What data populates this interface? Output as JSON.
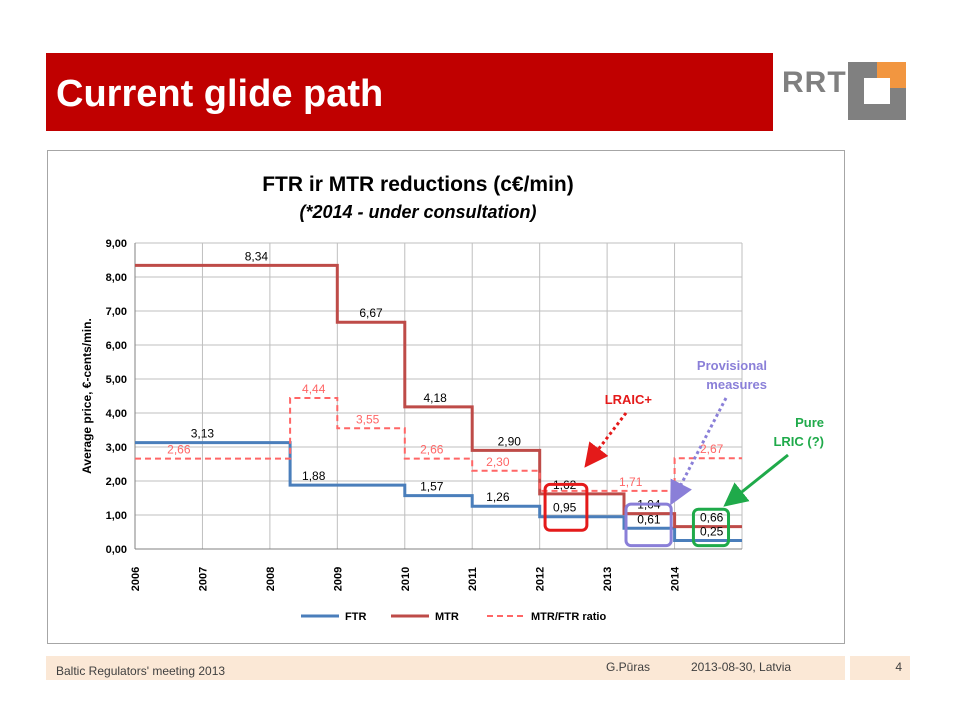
{
  "slide": {
    "title": "Current glide path",
    "logo_text": "RRT",
    "footer_left": "Baltic Regulators' meeting 2013",
    "footer_author": "G.Pūras",
    "footer_date": "2013-08-30,  Latvia",
    "page_number": "4"
  },
  "colors": {
    "banner": "#c00000",
    "ftr": "#4a7ebb",
    "mtr": "#be4b48",
    "ratio": "#ff6666",
    "lraic_box": "#e41a1a",
    "provisional_box": "#8a7fd8",
    "pure_lric_box": "#1faa4a",
    "footer_bg": "#fbe8d6"
  },
  "chart_data": {
    "type": "line",
    "step": true,
    "title": "FTR ir MTR reductions (c€/min)",
    "subtitle": "(*2014 - under consultation)",
    "xlabel": "",
    "ylabel": "Average price, €-cents/min.",
    "ylim": [
      0,
      9
    ],
    "yticks": [
      "0,00",
      "1,00",
      "2,00",
      "3,00",
      "4,00",
      "5,00",
      "6,00",
      "7,00",
      "8,00",
      "9,00"
    ],
    "x_ticks": [
      "2006",
      "2007",
      "2008",
      "2009",
      "2010",
      "2011",
      "2012",
      "2013",
      "2014"
    ],
    "xlim": [
      2006,
      2015
    ],
    "grid": true,
    "legend_position": "bottom",
    "series": [
      {
        "name": "FTR",
        "style": "solid",
        "x": [
          2006,
          2008.3,
          2008.3,
          2010,
          2010,
          2011,
          2011,
          2012,
          2012,
          2013.25,
          2013.25,
          2014,
          2014,
          2015
        ],
        "y": [
          3.13,
          3.13,
          1.88,
          1.88,
          1.57,
          1.57,
          1.26,
          1.26,
          0.95,
          0.95,
          0.61,
          0.61,
          0.25,
          0.25
        ]
      },
      {
        "name": "MTR",
        "style": "solid",
        "x": [
          2006,
          2009,
          2009,
          2010,
          2010,
          2011,
          2011,
          2012,
          2012,
          2013.25,
          2013.25,
          2014,
          2014,
          2015
        ],
        "y": [
          8.34,
          8.34,
          6.67,
          6.67,
          4.18,
          4.18,
          2.9,
          2.9,
          1.62,
          1.62,
          1.04,
          1.04,
          0.66,
          0.66
        ]
      },
      {
        "name": "MTR/FTR ratio",
        "style": "dashed",
        "x": [
          2006,
          2008.3,
          2008.3,
          2009,
          2009,
          2010,
          2010,
          2011,
          2011,
          2012,
          2012,
          2014,
          2014,
          2015
        ],
        "y": [
          2.66,
          2.66,
          4.44,
          4.44,
          3.55,
          3.55,
          2.66,
          2.66,
          2.3,
          2.3,
          1.71,
          1.71,
          2.67,
          2.67
        ]
      }
    ],
    "data_labels": [
      {
        "series": "MTR",
        "x": 2007.8,
        "y": 8.34,
        "text": "8,34"
      },
      {
        "series": "MTR",
        "x": 2009.5,
        "y": 6.67,
        "text": "6,67"
      },
      {
        "series": "MTR",
        "x": 2010.45,
        "y": 4.18,
        "text": "4,18"
      },
      {
        "series": "MTR",
        "x": 2011.55,
        "y": 2.9,
        "text": "2,90"
      },
      {
        "series": "MTR",
        "x": 2012.37,
        "y": 1.62,
        "text": "1,62"
      },
      {
        "series": "MTR",
        "x": 2013.62,
        "y": 1.04,
        "text": "1,04"
      },
      {
        "series": "MTR",
        "x": 2014.55,
        "y": 0.66,
        "text": "0,66"
      },
      {
        "series": "FTR",
        "x": 2007.0,
        "y": 3.13,
        "text": "3,13"
      },
      {
        "series": "FTR",
        "x": 2008.65,
        "y": 1.88,
        "text": "1,88"
      },
      {
        "series": "FTR",
        "x": 2010.4,
        "y": 1.57,
        "text": "1,57"
      },
      {
        "series": "FTR",
        "x": 2011.38,
        "y": 1.26,
        "text": "1,26"
      },
      {
        "series": "FTR",
        "x": 2012.37,
        "y": 0.95,
        "text": "0,95"
      },
      {
        "series": "FTR",
        "x": 2013.62,
        "y": 0.61,
        "text": "0,61"
      },
      {
        "series": "FTR",
        "x": 2014.55,
        "y": 0.25,
        "text": "0,25"
      },
      {
        "series": "MTR/FTR ratio",
        "x": 2006.65,
        "y": 2.66,
        "text": "2,66"
      },
      {
        "series": "MTR/FTR ratio",
        "x": 2008.65,
        "y": 4.44,
        "text": "4,44"
      },
      {
        "series": "MTR/FTR ratio",
        "x": 2009.45,
        "y": 3.55,
        "text": "3,55"
      },
      {
        "series": "MTR/FTR ratio",
        "x": 2010.4,
        "y": 2.66,
        "text": "2,66"
      },
      {
        "series": "MTR/FTR ratio",
        "x": 2011.38,
        "y": 2.3,
        "text": "2,30"
      },
      {
        "series": "MTR/FTR ratio",
        "x": 2013.35,
        "y": 1.71,
        "text": "1,71"
      },
      {
        "series": "MTR/FTR ratio",
        "x": 2014.55,
        "y": 2.67,
        "text": "2,67"
      }
    ],
    "annotations": [
      {
        "name": "lraic",
        "text": "LRAIC+",
        "color": "#e41a1a"
      },
      {
        "name": "provisional",
        "text_lines": [
          "Provisional",
          "measures"
        ],
        "color": "#8a7fd8"
      },
      {
        "name": "pure-lric",
        "text_lines": [
          "Pure",
          "LRIC (?)"
        ],
        "color": "#1faa4a"
      }
    ]
  }
}
